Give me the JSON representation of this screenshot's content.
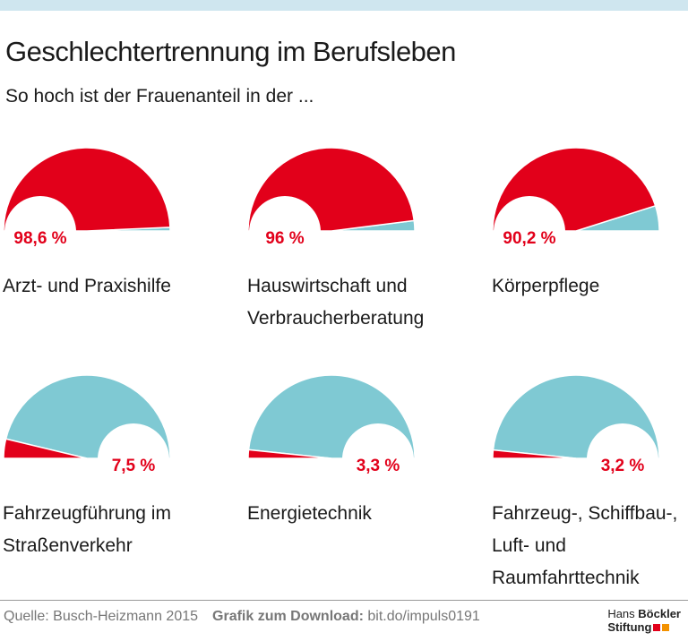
{
  "chart_data": {
    "type": "gauge",
    "title": "Geschlechtertrennung im Berufsleben",
    "subtitle": "So hoch ist der Frauenanteil in der ...",
    "categories": [
      "Arzt- und Praxishilfe",
      "Hauswirtschaft und Verbraucherberatung",
      "Körperpflege",
      "Fahrzeugführung im Straßenverkehr",
      "Energietechnik",
      "Fahrzeug-, Schiffbau-, Luft- und Raumfahrttechnik"
    ],
    "values": [
      98.6,
      96,
      90.2,
      7.5,
      3.3,
      3.2
    ],
    "value_labels": [
      "98,6 %",
      "96 %",
      "90,2 %",
      "7,5 %",
      "3,3 %",
      "3,2 %"
    ],
    "ylim": [
      0,
      100
    ],
    "colors": [
      "#e2001a",
      "#7fc9d3"
    ],
    "source": "Quelle: Busch-Heizmann 2015",
    "download_label": "Grafik zum Download:",
    "download_url": "bit.do/impuls0191",
    "logo": [
      "Hans",
      "Böckler",
      "Stiftung"
    ]
  }
}
